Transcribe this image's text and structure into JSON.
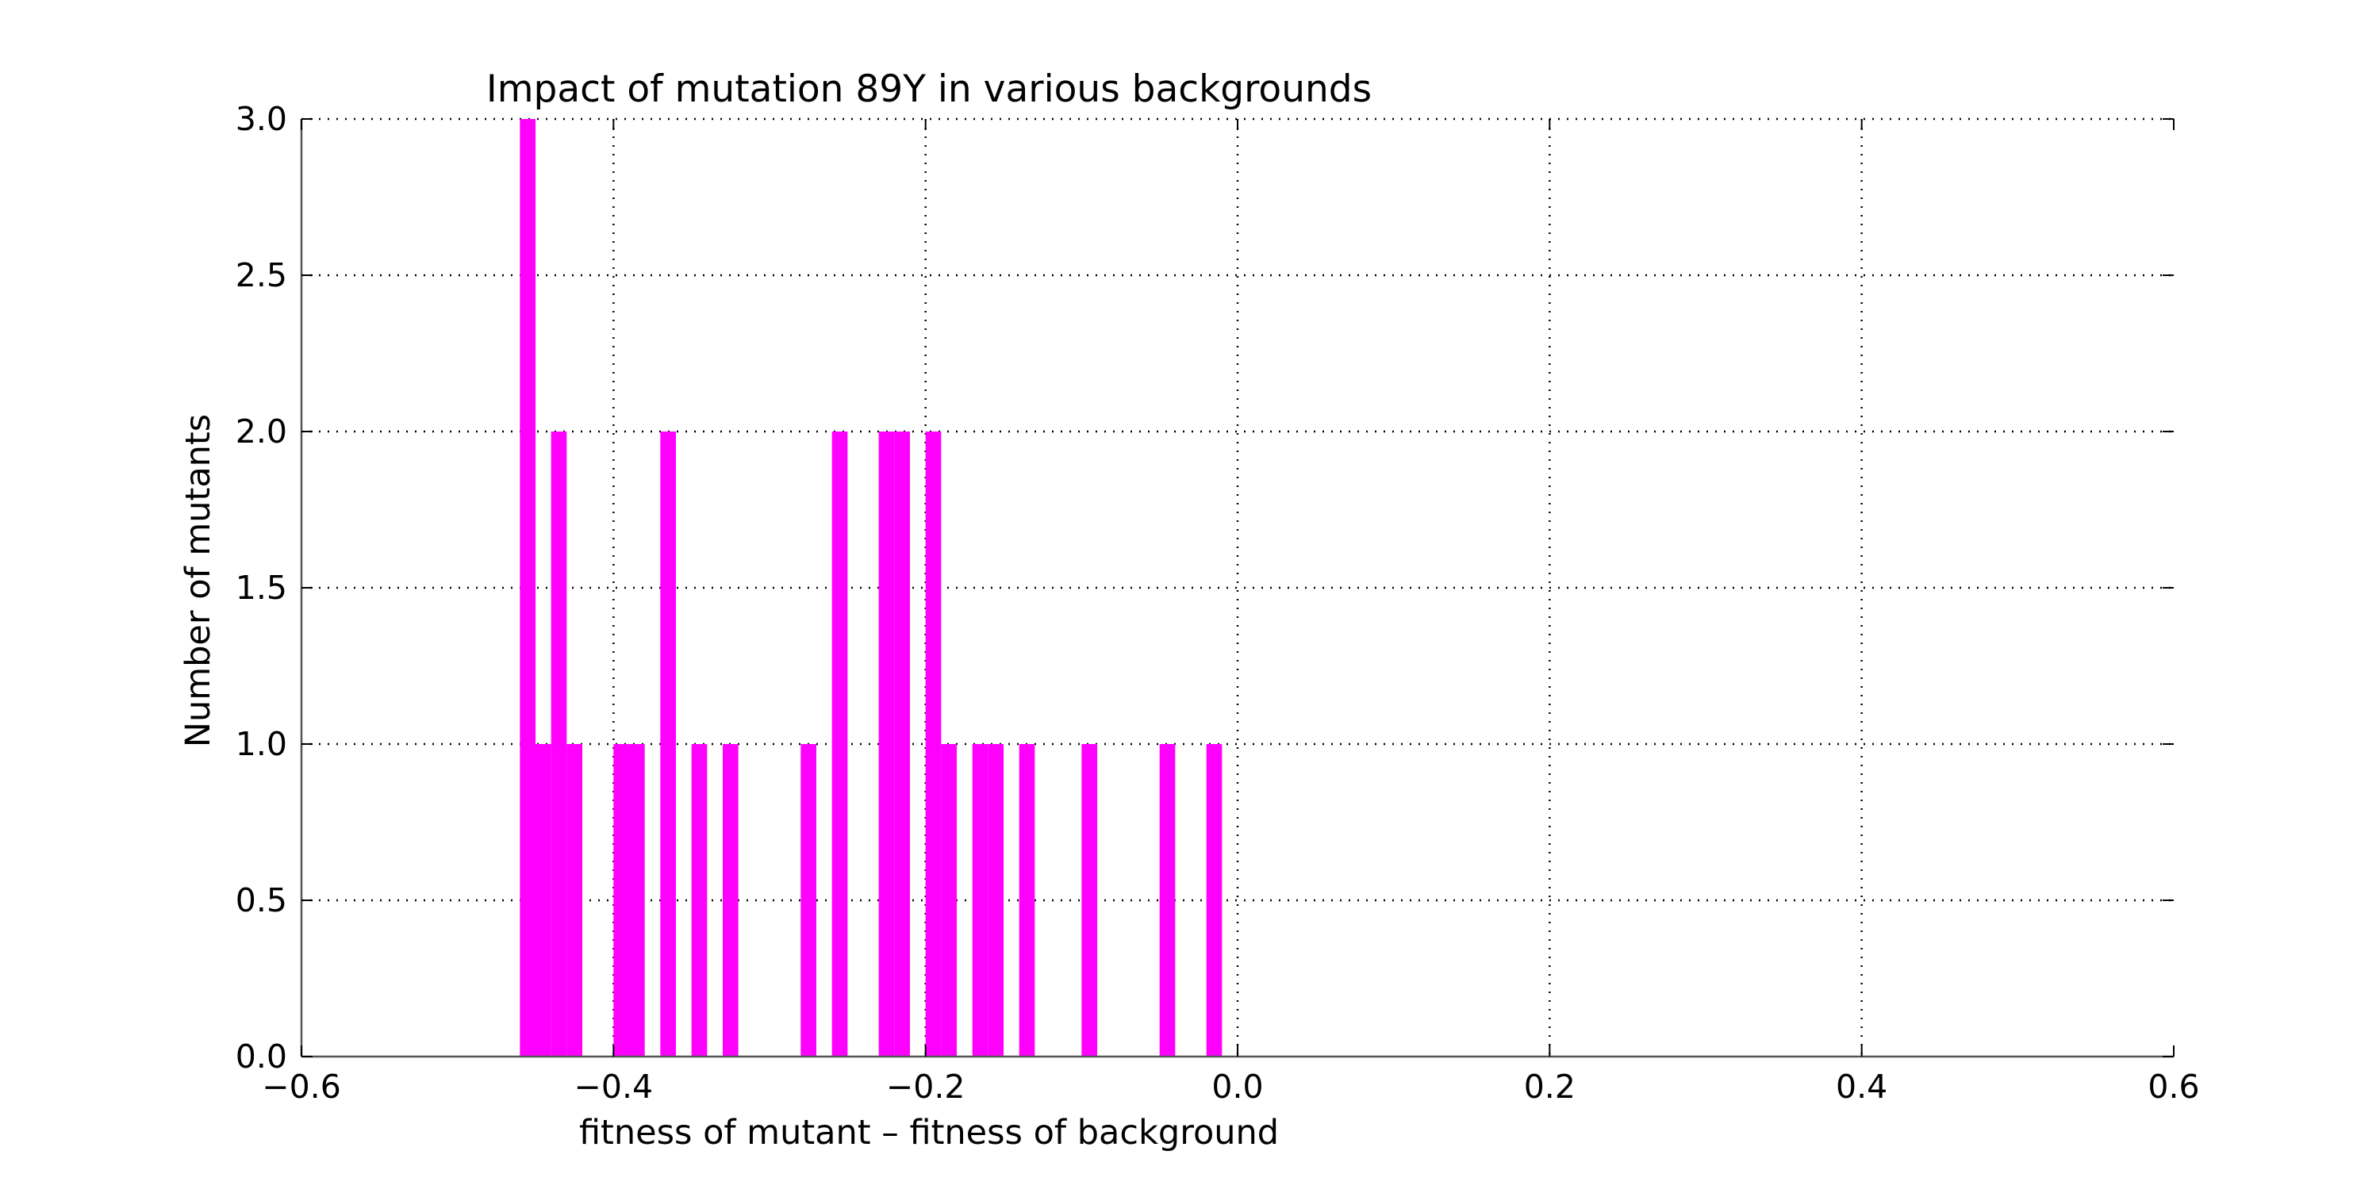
{
  "chart_data": {
    "type": "bar",
    "title": "Impact of mutation 89Y in various backgrounds",
    "xlabel": "fitness of mutant  –  fitness of background",
    "ylabel": "Number of mutants",
    "xlim": [
      -0.6,
      0.6
    ],
    "ylim": [
      0.0,
      3.0
    ],
    "x_ticks": [
      -0.6,
      -0.4,
      -0.2,
      0.0,
      0.2,
      0.4,
      0.6
    ],
    "x_tick_labels": [
      "−0.6",
      "−0.4",
      "−0.2",
      "0.0",
      "0.2",
      "0.4",
      "0.6"
    ],
    "y_ticks": [
      0.0,
      0.5,
      1.0,
      1.5,
      2.0,
      2.5,
      3.0
    ],
    "y_tick_labels": [
      "0.0",
      "0.5",
      "1.0",
      "1.5",
      "2.0",
      "2.5",
      "3.0"
    ],
    "grid": true,
    "bar_color": "#ff00ff",
    "bin_width": 0.01,
    "bins": [
      {
        "start": -0.46,
        "count": 3
      },
      {
        "start": -0.45,
        "count": 1
      },
      {
        "start": -0.44,
        "count": 2
      },
      {
        "start": -0.43,
        "count": 1
      },
      {
        "start": -0.4,
        "count": 1
      },
      {
        "start": -0.39,
        "count": 1
      },
      {
        "start": -0.37,
        "count": 2
      },
      {
        "start": -0.35,
        "count": 1
      },
      {
        "start": -0.33,
        "count": 1
      },
      {
        "start": -0.28,
        "count": 1
      },
      {
        "start": -0.26,
        "count": 2
      },
      {
        "start": -0.23,
        "count": 2
      },
      {
        "start": -0.22,
        "count": 2
      },
      {
        "start": -0.2,
        "count": 2
      },
      {
        "start": -0.19,
        "count": 1
      },
      {
        "start": -0.17,
        "count": 1
      },
      {
        "start": -0.16,
        "count": 1
      },
      {
        "start": -0.14,
        "count": 1
      },
      {
        "start": -0.1,
        "count": 1
      },
      {
        "start": -0.05,
        "count": 1
      },
      {
        "start": -0.02,
        "count": 1
      }
    ]
  }
}
